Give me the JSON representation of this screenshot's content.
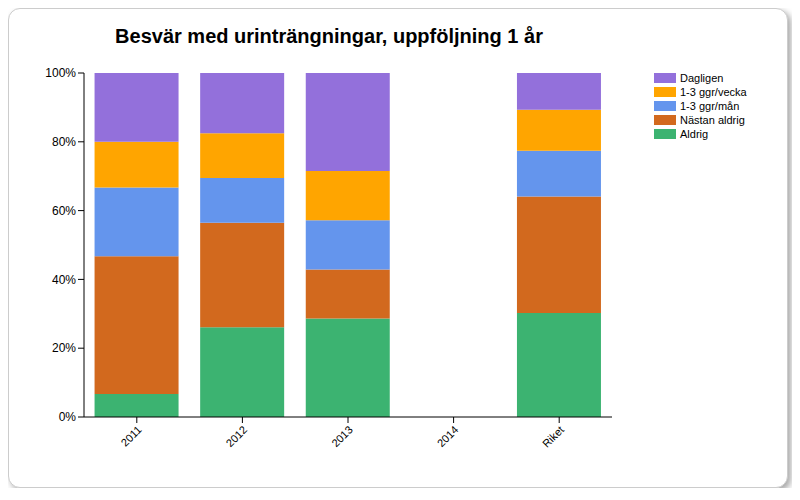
{
  "chart_data": {
    "type": "bar",
    "title": "Besvär med urinträngningar, uppföljning 1 år",
    "stacked": true,
    "grid": false,
    "legend": "right",
    "categories": [
      "2011",
      "2012",
      "2013",
      "2014",
      "Riket"
    ],
    "ylim": [
      0,
      100
    ],
    "yticks": [
      {
        "value": 0,
        "label": "0%"
      },
      {
        "value": 20,
        "label": "20%"
      },
      {
        "value": 40,
        "label": "40%"
      },
      {
        "value": 60,
        "label": "60%"
      },
      {
        "value": 80,
        "label": "80%"
      },
      {
        "value": 100,
        "label": "100%"
      }
    ],
    "series": [
      {
        "name": "Aldrig",
        "color": "#3CB371",
        "values": [
          6.7,
          26.1,
          28.6,
          null,
          30.2
        ]
      },
      {
        "name": "Nästan aldrig",
        "color": "#D2691E",
        "values": [
          40.0,
          30.4,
          14.3,
          null,
          33.9
        ]
      },
      {
        "name": "1-3 ggr/mån",
        "color": "#6495ED",
        "values": [
          20.0,
          13.0,
          14.3,
          null,
          13.3
        ]
      },
      {
        "name": "1-3 ggr/vecka",
        "color": "#FFA500",
        "values": [
          13.3,
          13.0,
          14.3,
          null,
          11.9
        ]
      },
      {
        "name": "Dagligen",
        "color": "#9370DB",
        "values": [
          20.0,
          17.5,
          28.5,
          null,
          10.7
        ]
      }
    ]
  }
}
